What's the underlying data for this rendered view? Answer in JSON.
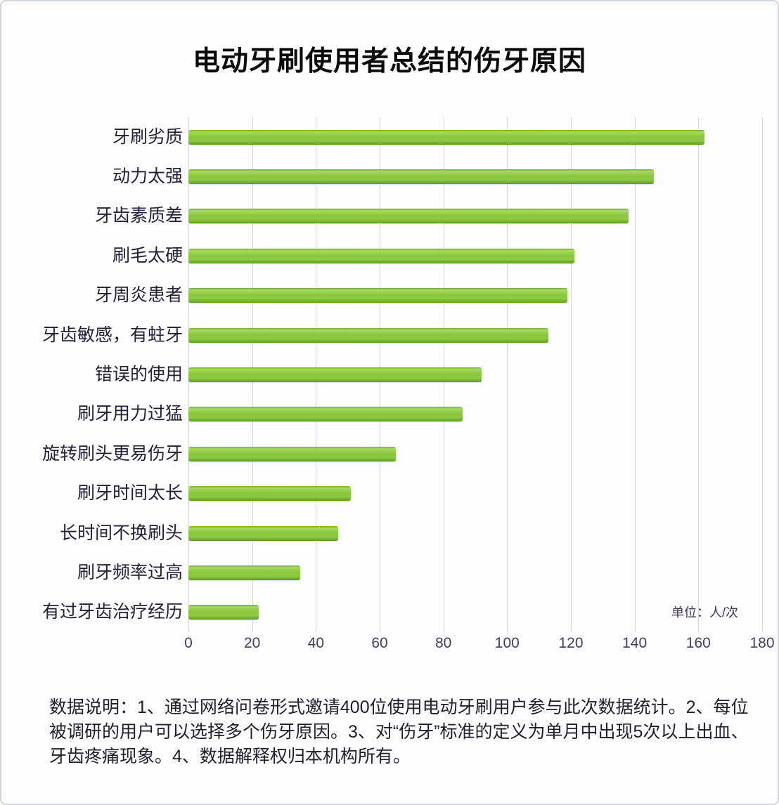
{
  "page": {
    "title": "电动牙刷使用者总结的伤牙原因",
    "unit_label": "单位：人/次",
    "footer_note": "数据说明：1、通过网络问卷形式邀请400位使用电动牙刷用户参与此次数据统计。2、每位被调研的用户可以选择多个伤牙原因。3、对“伤牙”标准的定义为单月中出现5次以上出血、牙齿疼痛现象。4、数据解释权归本机构所有。"
  },
  "chart_data": {
    "type": "bar",
    "orientation": "horizontal",
    "title": "电动牙刷使用者总结的伤牙原因",
    "categories": [
      "牙刷劣质",
      "动力太强",
      "牙齿素质差",
      "刷毛太硬",
      "牙周炎患者",
      "牙齿敏感，有蛀牙",
      "错误的使用",
      "刷牙用力过猛",
      "旋转刷头更易伤牙",
      "刷牙时间太长",
      "长时间不换刷头",
      "刷牙频率过高",
      "有过牙齿治疗经历"
    ],
    "values": [
      162,
      146,
      138,
      121,
      119,
      113,
      92,
      86,
      65,
      51,
      47,
      35,
      22
    ],
    "xlabel": "单位：人/次",
    "ylabel": "",
    "x_ticks": [
      0,
      20,
      40,
      60,
      80,
      100,
      120,
      140,
      160,
      180
    ],
    "xlim": [
      0,
      180
    ],
    "grid": "vertical-only",
    "legend": "none",
    "bar_color": "#8cc63f",
    "bar_gradient": [
      "#74ad31",
      "#a7da60",
      "#8cc63f",
      "#619d23"
    ],
    "gridline_color": "#d6d6d8",
    "label_color": "#262138",
    "tick_color": "#473c62"
  }
}
